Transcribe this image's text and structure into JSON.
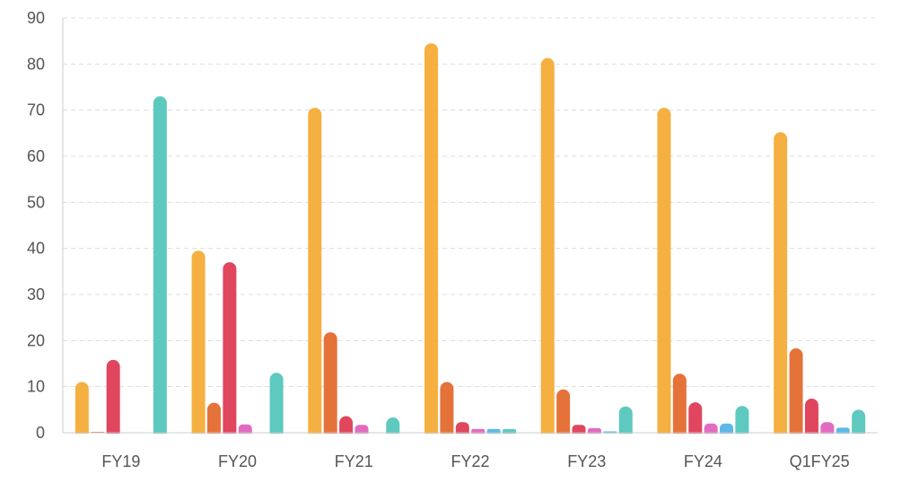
{
  "chart_data": {
    "type": "bar",
    "title": "",
    "xlabel": "",
    "ylabel": "",
    "ylim": [
      0,
      90
    ],
    "yticks": [
      0,
      10,
      20,
      30,
      40,
      50,
      60,
      70,
      80,
      90
    ],
    "grid": true,
    "categories": [
      "FY19",
      "FY20",
      "FY21",
      "FY22",
      "FY23",
      "FY24",
      "Q1FY25"
    ],
    "series": [
      {
        "color": "#F5B041",
        "values": [
          11,
          39.5,
          70.5,
          84.5,
          81.3,
          70.5,
          65.2
        ]
      },
      {
        "color": "#E57339",
        "values": [
          0.2,
          6.5,
          21.8,
          11,
          9.4,
          12.8,
          18.3
        ]
      },
      {
        "color": "#E0465E",
        "values": [
          15.8,
          37,
          3.6,
          2.3,
          1.7,
          6.6,
          7.4
        ]
      },
      {
        "color": "#E26BC0",
        "values": [
          0,
          1.8,
          1.7,
          0.8,
          1,
          2,
          2.3
        ]
      },
      {
        "color": "#5DB8E8",
        "values": [
          0,
          0,
          0,
          0.8,
          0.3,
          2,
          1.1
        ]
      },
      {
        "color": "#5DC9BF",
        "values": [
          73,
          13,
          3.3,
          0.8,
          5.7,
          5.8,
          5
        ]
      }
    ]
  }
}
